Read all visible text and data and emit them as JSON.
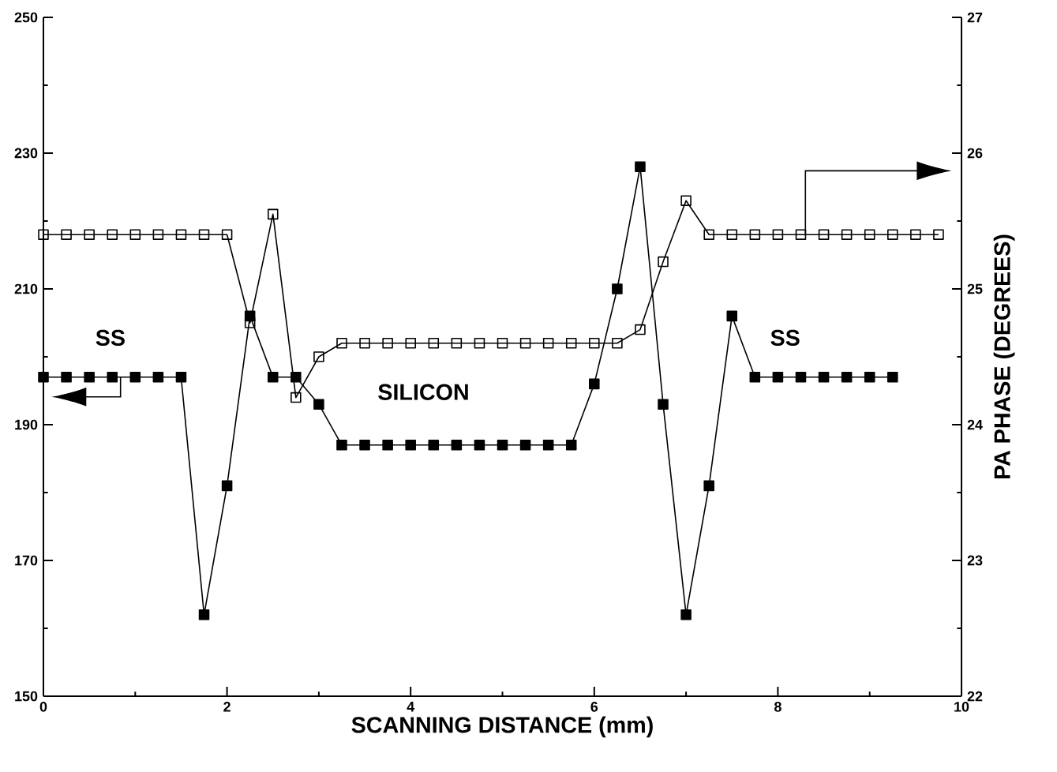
{
  "chart_data": {
    "type": "line",
    "xlabel": "SCANNING DISTANCE (mm)",
    "y2label": "PA PHASE (DEGREES)",
    "xlim": [
      0,
      10
    ],
    "xticks": [
      0,
      2,
      4,
      6,
      8,
      10
    ],
    "ylim": [
      150,
      250
    ],
    "yticks": [
      150,
      170,
      190,
      210,
      230,
      250
    ],
    "y2lim": [
      22,
      27
    ],
    "y2ticks": [
      22,
      23,
      24,
      25,
      26,
      27
    ],
    "marker": "square",
    "grid": false,
    "annotations": [
      "SS",
      "SILICON",
      "SS"
    ],
    "series": [
      {
        "color": "#000000",
        "axis": "y",
        "x": [
          0,
          0.25,
          0.5,
          0.75,
          1,
          1.25,
          1.5,
          1.75,
          2,
          2.25,
          2.5,
          2.75,
          3,
          3.25,
          3.5,
          3.75,
          4,
          4.25,
          4.5,
          4.75,
          5,
          5.25,
          5.5,
          5.75,
          6,
          6.25,
          6.5,
          6.75,
          7,
          7.25,
          7.5,
          7.75,
          8,
          8.25,
          8.5,
          8.75,
          9,
          9.25
        ],
        "values": [
          197,
          197,
          197,
          197,
          197,
          197,
          197,
          162,
          181,
          206,
          197,
          197,
          193,
          187,
          187,
          187,
          187,
          187,
          187,
          187,
          187,
          187,
          187,
          187,
          196,
          210,
          228,
          193,
          162,
          181,
          206,
          197,
          197,
          197,
          197,
          197,
          197,
          197
        ]
      },
      {
        "color": "#000000",
        "axis": "y2",
        "x": [
          0,
          0.25,
          0.5,
          0.75,
          1,
          1.25,
          1.5,
          1.75,
          2,
          2.25,
          2.5,
          2.75,
          3,
          3.25,
          3.5,
          3.75,
          4,
          4.25,
          4.5,
          4.75,
          5,
          5.25,
          5.5,
          5.75,
          6,
          6.25,
          6.5,
          6.75,
          7,
          7.25,
          7.5,
          7.75,
          8,
          8.25,
          8.5,
          8.75,
          9,
          9.25,
          9.5,
          9.75
        ],
        "values": [
          25.4,
          25.4,
          25.4,
          25.4,
          25.4,
          25.4,
          25.4,
          25.4,
          25.4,
          24.75,
          25.55,
          24.2,
          24.5,
          24.6,
          24.6,
          24.6,
          24.6,
          24.6,
          24.6,
          24.6,
          24.6,
          24.6,
          24.6,
          24.6,
          24.6,
          24.6,
          24.7,
          25.2,
          25.65,
          25.4,
          25.4,
          25.4,
          25.4,
          25.4,
          25.4,
          25.4,
          25.4,
          25.4,
          25.4,
          25.4
        ]
      }
    ]
  }
}
